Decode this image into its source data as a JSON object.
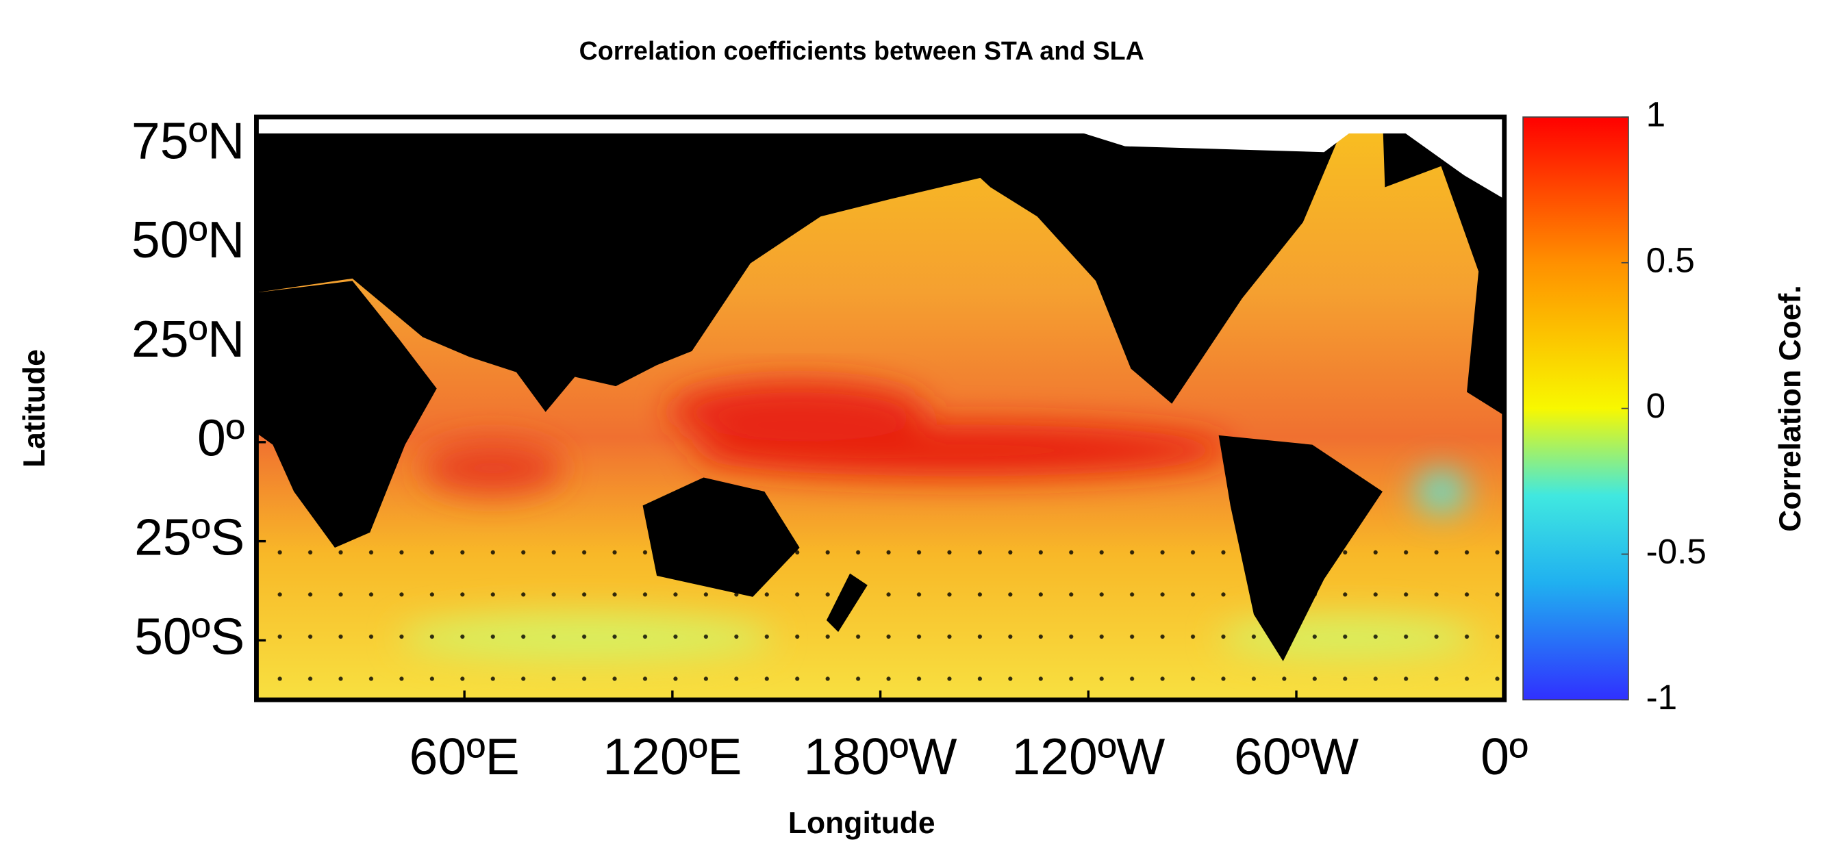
{
  "chart_data": {
    "type": "map",
    "title": "Correlation coefficients between STA and SLA",
    "x_label": "Longitude",
    "y_label": "Latitude",
    "xlim": [
      0,
      360
    ],
    "ylim": [
      -65,
      82
    ],
    "xticks": [
      {
        "value": 60,
        "label": "60ºE"
      },
      {
        "value": 120,
        "label": "120ºE"
      },
      {
        "value": 180,
        "label": "180ºW"
      },
      {
        "value": 240,
        "label": "120ºW"
      },
      {
        "value": 300,
        "label": "60ºW"
      },
      {
        "value": 360,
        "label": "0º"
      }
    ],
    "yticks": [
      {
        "value": 75,
        "label": "75ºN"
      },
      {
        "value": 50,
        "label": "50ºN"
      },
      {
        "value": 25,
        "label": "25ºN"
      },
      {
        "value": 0,
        "label": "0º"
      },
      {
        "value": -25,
        "label": "25ºS"
      },
      {
        "value": -50,
        "label": "50ºS"
      }
    ],
    "colorbar": {
      "label": "Correlation Coef.",
      "lim": [
        -1,
        1
      ],
      "ticks": [
        1,
        0.5,
        0,
        -0.5,
        -1
      ]
    }
  }
}
